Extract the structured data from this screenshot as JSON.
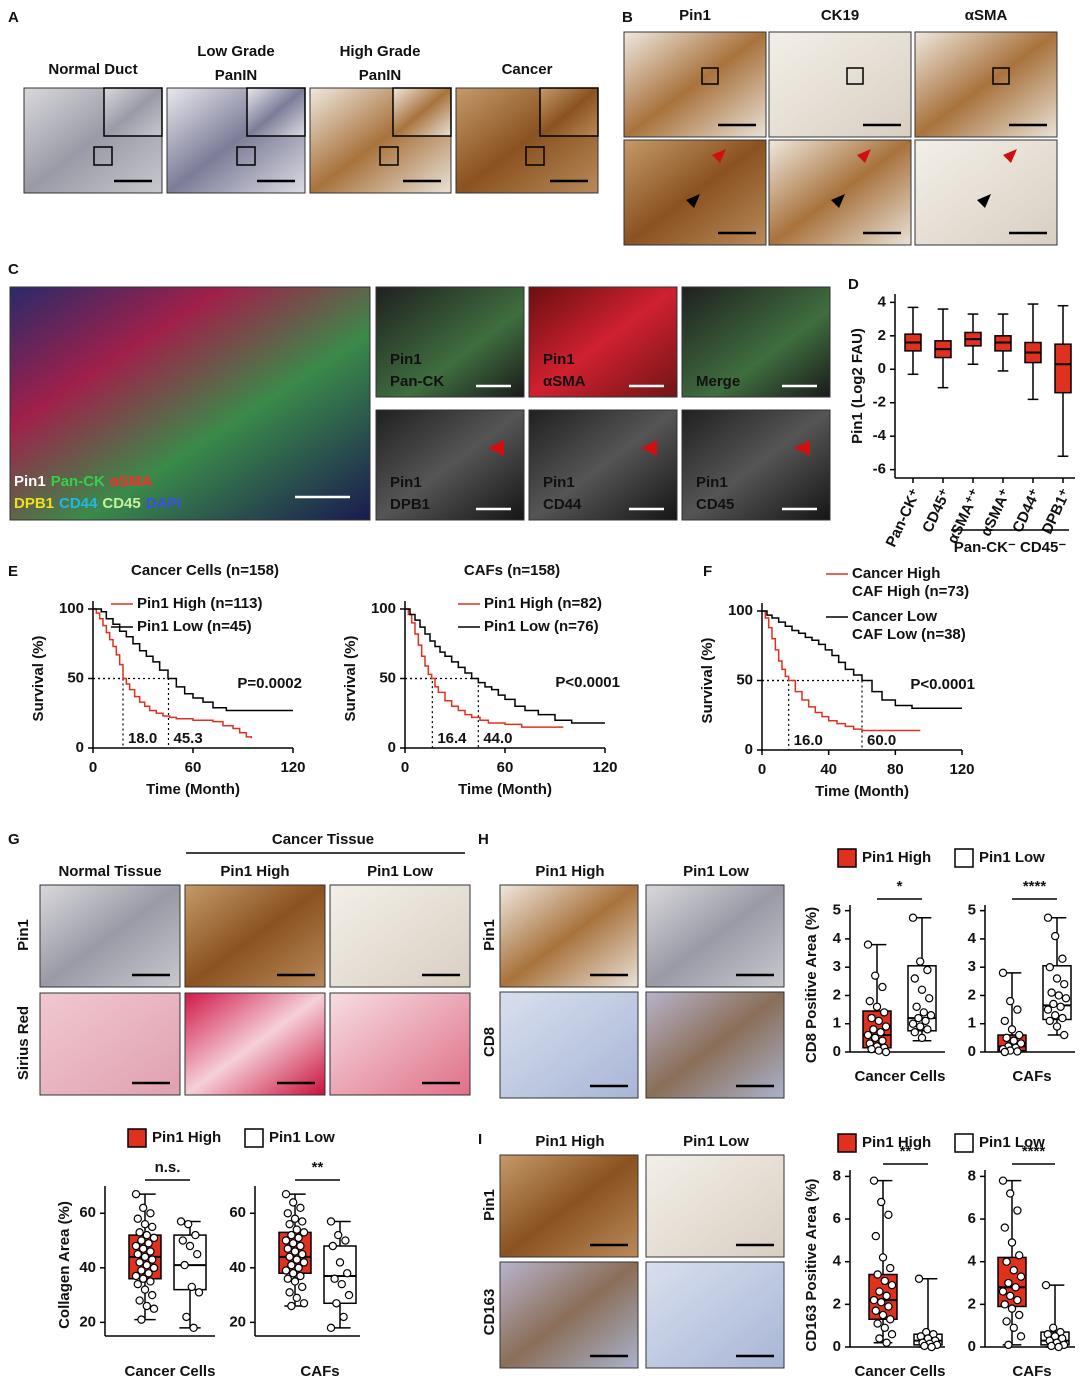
{
  "panel_labels": [
    "A",
    "B",
    "C",
    "D",
    "E",
    "F",
    "G",
    "H",
    "I"
  ],
  "panel_a": {
    "titles": [
      [
        "Normal Duct"
      ],
      [
        "Low Grade",
        "PanIN"
      ],
      [
        "High Grade",
        "PanIN"
      ],
      [
        "Cancer"
      ]
    ]
  },
  "panel_b": {
    "titles": [
      "Pin1",
      "CK19",
      "αSMA"
    ]
  },
  "panel_c": {
    "overview": [
      [
        "Pin1",
        "Pan-CK",
        "αSMA"
      ],
      [
        "DPB1",
        "CD44",
        "CD45",
        "DAPI"
      ]
    ],
    "tiles": [
      [
        "Pin1",
        "Pan-CK"
      ],
      [
        "Pin1",
        "αSMA"
      ],
      [
        "Merge"
      ],
      [
        "Pin1",
        "DPB1"
      ],
      [
        "Pin1",
        "CD44"
      ],
      [
        "Pin1",
        "CD45"
      ]
    ]
  },
  "panel_g": {
    "group_header": "Cancer Tissue",
    "columns": [
      "Normal Tissue",
      "Pin1 High",
      "Pin1 Low"
    ],
    "rows": [
      "Pin1",
      "Sirius Red"
    ]
  },
  "panel_h": {
    "columns": [
      "Pin1 High",
      "Pin1 Low"
    ],
    "rows": [
      "Pin1",
      "CD8"
    ]
  },
  "panel_i": {
    "columns": [
      "Pin1 High",
      "Pin1 Low"
    ],
    "rows": [
      "Pin1",
      "CD163"
    ]
  },
  "chart_data": [
    {
      "type": "box",
      "ylabel": "Pin1 (Log2 FAU)",
      "color": "#e0301e",
      "categories": [
        "Pan-CK⁺",
        "CD45⁺",
        "αSMA⁺⁺",
        "αSMA⁺",
        "CD44⁺",
        "DPB1⁺"
      ],
      "ylim": [
        -6.5,
        4.5
      ],
      "yticks": [
        -6,
        -4,
        -2,
        0,
        2,
        4
      ],
      "boxes": [
        {
          "min": -0.3,
          "q1": 1.1,
          "median": 1.6,
          "q3": 2.1,
          "max": 3.7
        },
        {
          "min": -1.1,
          "q1": 0.7,
          "median": 1.2,
          "q3": 1.7,
          "max": 3.6
        },
        {
          "min": 0.3,
          "q1": 1.4,
          "median": 1.8,
          "q3": 2.2,
          "max": 3.3
        },
        {
          "min": -0.1,
          "q1": 1.1,
          "median": 1.6,
          "q3": 2.0,
          "max": 3.3
        },
        {
          "min": -1.8,
          "q1": 0.4,
          "median": 1.0,
          "q3": 1.6,
          "max": 3.9
        },
        {
          "min": -5.2,
          "q1": -1.4,
          "median": 0.3,
          "q3": 1.5,
          "max": 3.8
        }
      ],
      "group_label": "Pan-CK⁻ CD45⁻"
    },
    {
      "type": "km",
      "title": "Cancer Cells (n=158)",
      "xlabel": "Time (Month)",
      "ylabel": "Survival (%)",
      "xlim": [
        0,
        120
      ],
      "xticks": [
        0,
        60,
        120
      ],
      "ylim": [
        0,
        100
      ],
      "yticks": [
        0,
        50,
        100
      ],
      "series": [
        {
          "name": [
            "Pin1 High (n=113)"
          ],
          "color": "#e0301e",
          "x": [
            0,
            2,
            4,
            6,
            8,
            10,
            12,
            14,
            16,
            18,
            20,
            22,
            25,
            28,
            31,
            34,
            38,
            42,
            46,
            50,
            55,
            60,
            66,
            72,
            78,
            84,
            88,
            92,
            95
          ],
          "values": [
            100,
            97,
            93,
            88,
            83,
            78,
            73,
            67,
            60,
            50,
            46,
            42,
            37,
            33,
            30,
            27,
            25,
            23,
            22,
            21,
            21,
            20,
            20,
            19,
            16,
            14,
            11,
            8,
            7
          ]
        },
        {
          "name": [
            "Pin1 Low (n=45)"
          ],
          "color": "#000000",
          "x": [
            0,
            5,
            8,
            12,
            16,
            20,
            24,
            28,
            32,
            36,
            40,
            45,
            50,
            55,
            60,
            66,
            72,
            80,
            90,
            100,
            110,
            120
          ],
          "values": [
            100,
            98,
            93,
            89,
            84,
            80,
            75,
            70,
            66,
            62,
            56,
            50,
            44,
            39,
            36,
            33,
            29,
            27,
            27,
            27,
            27,
            27
          ]
        }
      ],
      "medians": [
        {
          "value": 18,
          "label": "18.0"
        },
        {
          "value": 45.3,
          "label": "45.3"
        }
      ],
      "p_value": "P=0.0002"
    },
    {
      "type": "km",
      "title": "CAFs (n=158)",
      "xlabel": "Time (Month)",
      "ylabel": "Survival (%)",
      "xlim": [
        0,
        120
      ],
      "xticks": [
        0,
        60,
        120
      ],
      "ylim": [
        0,
        100
      ],
      "yticks": [
        0,
        50,
        100
      ],
      "series": [
        {
          "name": [
            "Pin1 High (n=82)"
          ],
          "color": "#e0301e",
          "x": [
            0,
            2,
            4,
            6,
            8,
            10,
            12,
            14,
            16,
            18,
            20,
            24,
            28,
            32,
            36,
            40,
            45,
            50,
            60,
            70,
            80,
            95
          ],
          "values": [
            100,
            96,
            90,
            82,
            74,
            66,
            59,
            53,
            50,
            44,
            40,
            34,
            30,
            27,
            24,
            22,
            20,
            18,
            17,
            15,
            15,
            15
          ]
        },
        {
          "name": [
            "Pin1 Low (n=76)"
          ],
          "color": "#000000",
          "x": [
            0,
            3,
            6,
            9,
            12,
            15,
            18,
            21,
            24,
            28,
            32,
            36,
            40,
            44,
            48,
            52,
            56,
            60,
            66,
            72,
            80,
            90,
            100,
            110,
            120
          ],
          "values": [
            100,
            96,
            92,
            87,
            82,
            77,
            73,
            69,
            66,
            62,
            58,
            54,
            50,
            47,
            44,
            42,
            38,
            35,
            30,
            27,
            24,
            20,
            18,
            18,
            18
          ]
        }
      ],
      "medians": [
        {
          "value": 16.4,
          "label": "16.4"
        },
        {
          "value": 44,
          "label": "44.0"
        }
      ],
      "p_value": "P<0.0001"
    },
    {
      "type": "km",
      "xlabel": "Time (Month)",
      "ylabel": "Survival (%)",
      "xlim": [
        0,
        120
      ],
      "xticks": [
        0,
        40,
        80,
        120
      ],
      "ylim": [
        0,
        100
      ],
      "yticks": [
        0,
        50,
        100
      ],
      "series": [
        {
          "name": [
            "Cancer High",
            "CAF High (n=73)"
          ],
          "color": "#e0301e",
          "x": [
            0,
            2,
            4,
            6,
            8,
            10,
            12,
            14,
            16,
            20,
            24,
            28,
            32,
            36,
            40,
            45,
            50,
            55,
            60,
            70,
            80,
            95
          ],
          "values": [
            100,
            95,
            88,
            80,
            72,
            64,
            58,
            53,
            50,
            42,
            36,
            31,
            27,
            24,
            21,
            19,
            17,
            15,
            14,
            14,
            14,
            14
          ]
        },
        {
          "name": [
            "Cancer Low",
            "CAF Low (n=38)"
          ],
          "color": "#000000",
          "x": [
            0,
            3,
            6,
            10,
            14,
            18,
            22,
            26,
            30,
            34,
            38,
            42,
            46,
            50,
            55,
            60,
            66,
            72,
            80,
            90,
            100,
            110,
            120
          ],
          "values": [
            100,
            97,
            95,
            92,
            89,
            86,
            84,
            81,
            79,
            76,
            72,
            68,
            63,
            58,
            54,
            50,
            42,
            36,
            32,
            30,
            30,
            30,
            30
          ]
        }
      ],
      "medians": [
        {
          "value": 16,
          "label": "16.0"
        },
        {
          "value": 60,
          "label": "60.0"
        }
      ],
      "p_value": "P<0.0001"
    },
    {
      "type": "box",
      "ylabel": "Collagen Area (%)",
      "series": [
        {
          "name": "Pin1 High",
          "color": "#e0301e"
        },
        {
          "name": "Pin1 Low",
          "color": "#ffffff"
        }
      ],
      "groups": [
        {
          "label": "Cancer Cells",
          "ylim": [
            15,
            70
          ],
          "yticks": [
            20,
            40,
            60
          ],
          "significance": "n.s.",
          "boxes": [
            {
              "min": 21,
              "q1": 36,
              "median": 44,
              "q3": 52,
              "max": 67,
              "points": [
                67,
                62,
                60,
                58,
                56,
                55,
                53,
                52,
                51,
                50,
                49,
                48,
                47,
                46,
                45,
                44,
                43,
                42,
                41,
                40,
                39,
                38,
                37,
                36,
                35,
                34,
                32,
                30,
                28,
                26,
                25,
                21
              ]
            },
            {
              "min": 18,
              "q1": 32,
              "median": 41,
              "q3": 52,
              "max": 57,
              "points": [
                57,
                56,
                52,
                50,
                48,
                45,
                41,
                33,
                31,
                22,
                18
              ]
            }
          ]
        },
        {
          "label": "CAFs",
          "ylim": [
            15,
            70
          ],
          "yticks": [
            20,
            40,
            60
          ],
          "significance": "**",
          "boxes": [
            {
              "min": 26,
              "q1": 38,
              "median": 44,
              "q3": 53,
              "max": 67,
              "points": [
                67,
                64,
                62,
                60,
                58,
                57,
                56,
                54,
                53,
                52,
                51,
                50,
                49,
                48,
                47,
                46,
                45,
                44,
                43,
                42,
                41,
                40,
                39,
                38,
                37,
                36,
                35,
                33,
                31,
                29,
                27,
                26
              ]
            },
            {
              "min": 18,
              "q1": 27,
              "median": 37,
              "q3": 48,
              "max": 57,
              "points": [
                57,
                52,
                50,
                48,
                42,
                38,
                36,
                34,
                30,
                27,
                22,
                18
              ]
            }
          ]
        }
      ]
    },
    {
      "type": "box",
      "ylabel": "CD8 Positive Area (%)",
      "series": [
        {
          "name": "Pin1 High",
          "color": "#e0301e"
        },
        {
          "name": "Pin1 Low",
          "color": "#ffffff"
        }
      ],
      "groups": [
        {
          "label": "Cancer Cells",
          "ylim": [
            0,
            5.2
          ],
          "yticks": [
            0,
            1,
            2,
            3,
            4,
            5
          ],
          "significance": "*",
          "boxes": [
            {
              "min": 0,
              "q1": 0.15,
              "median": 0.6,
              "q3": 1.45,
              "max": 3.8,
              "points": [
                3.8,
                2.7,
                2.3,
                1.8,
                1.6,
                1.4,
                1.2,
                1.1,
                0.9,
                0.8,
                0.7,
                0.6,
                0.5,
                0.4,
                0.3,
                0.2,
                0.15,
                0.1,
                0.05,
                0
              ]
            },
            {
              "min": 0.4,
              "q1": 0.75,
              "median": 1.2,
              "q3": 3.05,
              "max": 4.75,
              "points": [
                4.75,
                3.2,
                2.9,
                2.6,
                2.2,
                1.9,
                1.6,
                1.4,
                1.3,
                1.2,
                1.1,
                1.0,
                0.9,
                0.8,
                0.7,
                0.5
              ]
            }
          ]
        },
        {
          "label": "CAFs",
          "ylim": [
            0,
            5.2
          ],
          "yticks": [
            0,
            1,
            2,
            3,
            4,
            5
          ],
          "significance": "****",
          "boxes": [
            {
              "min": 0,
              "q1": 0.05,
              "median": 0.2,
              "q3": 0.6,
              "max": 2.8,
              "points": [
                2.8,
                1.8,
                1.5,
                1.1,
                0.8,
                0.6,
                0.5,
                0.4,
                0.3,
                0.2,
                0.15,
                0.1,
                0.05,
                0.02,
                0
              ]
            },
            {
              "min": 0.6,
              "q1": 1.15,
              "median": 1.65,
              "q3": 3.05,
              "max": 4.75,
              "points": [
                4.75,
                4.1,
                3.3,
                3.0,
                2.6,
                2.4,
                2.1,
                2.0,
                1.9,
                1.7,
                1.6,
                1.5,
                1.3,
                1.2,
                1.1,
                0.9,
                0.6
              ]
            }
          ]
        }
      ]
    },
    {
      "type": "box",
      "ylabel": "CD163 Positive Area (%)",
      "series": [
        {
          "name": "Pin1 High",
          "color": "#e0301e"
        },
        {
          "name": "Pin1 Low",
          "color": "#ffffff"
        }
      ],
      "groups": [
        {
          "label": "Cancer Cells",
          "ylim": [
            0,
            8.3
          ],
          "yticks": [
            0,
            2,
            4,
            6,
            8
          ],
          "significance": "**",
          "boxes": [
            {
              "min": 0.2,
              "q1": 1.3,
              "median": 2.2,
              "q3": 3.4,
              "max": 7.8,
              "points": [
                7.8,
                6.8,
                6.2,
                5.2,
                4.2,
                3.7,
                3.4,
                3.1,
                2.9,
                2.6,
                2.4,
                2.2,
                2.1,
                1.9,
                1.7,
                1.5,
                1.3,
                1.1,
                0.9,
                0.6,
                0.4,
                0.2
              ]
            },
            {
              "min": 0,
              "q1": 0.1,
              "median": 0.3,
              "q3": 0.6,
              "max": 3.2,
              "points": [
                3.2,
                0.7,
                0.6,
                0.5,
                0.4,
                0.3,
                0.2,
                0.15,
                0.1,
                0.05,
                0
              ]
            }
          ]
        },
        {
          "label": "CAFs",
          "ylim": [
            0,
            8.3
          ],
          "yticks": [
            0,
            2,
            4,
            6,
            8
          ],
          "significance": "****",
          "boxes": [
            {
              "min": 0.1,
              "q1": 1.9,
              "median": 2.8,
              "q3": 4.2,
              "max": 7.8,
              "points": [
                7.8,
                7.2,
                6.4,
                5.6,
                4.9,
                4.3,
                4.0,
                3.6,
                3.3,
                3.0,
                2.8,
                2.6,
                2.4,
                2.2,
                2.0,
                1.8,
                1.5,
                1.2,
                0.9,
                0.5,
                0.1
              ]
            },
            {
              "min": 0,
              "q1": 0.1,
              "median": 0.3,
              "q3": 0.7,
              "max": 2.9,
              "points": [
                2.9,
                0.9,
                0.7,
                0.6,
                0.5,
                0.4,
                0.3,
                0.2,
                0.1,
                0.05,
                0
              ]
            }
          ]
        }
      ]
    }
  ]
}
